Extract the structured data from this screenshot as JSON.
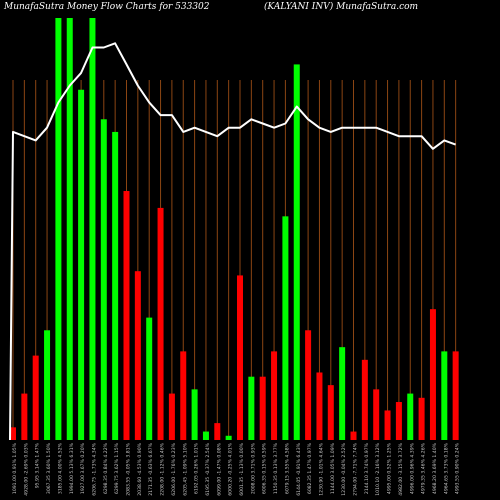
{
  "header": {
    "title": "MunafaSutra Money Flow  Charts for 533302",
    "subtitle": "(KALYANI INV) MunafaSutra.com"
  },
  "colors": {
    "background": "#000000",
    "grid": "#8B4513",
    "up": "#00FF00",
    "down": "#FF0000",
    "line": "#FFFFFF",
    "label": "#C8C8C8"
  },
  "chart_data": {
    "type": "bar",
    "grid": true,
    "series_line_name": "",
    "bars": [
      {
        "label": "1091.00 0.91% 1.05%",
        "value": 3,
        "color": "down"
      },
      {
        "label": "4928.00 -2.69% 0.03%",
        "value": 11,
        "color": "down"
      },
      {
        "label": "95.95 3.14% 1.47%",
        "value": 20,
        "color": "down"
      },
      {
        "label": "3067.35 3.60% 1.50%",
        "value": 26,
        "color": "up"
      },
      {
        "label": "3185.00 4.00% 4.52%",
        "value": 100,
        "color": "up"
      },
      {
        "label": "1994.00 5.13% 6.31%",
        "value": 100,
        "color": "up"
      },
      {
        "label": "1927.00 3.67% 0.20%",
        "value": 83,
        "color": "up"
      },
      {
        "label": "6206.75 -1.73% 4.34%",
        "value": 100,
        "color": "up"
      },
      {
        "label": "6298.35 0.84% 4.22%",
        "value": 76,
        "color": "up"
      },
      {
        "label": "6299.75 3.62% 1.15%",
        "value": 73,
        "color": "up"
      },
      {
        "label": "2083.55 -0.05% 3.81%",
        "value": 59,
        "color": "down"
      },
      {
        "label": "2038.60 -4.53% 0.90%",
        "value": 40,
        "color": "down"
      },
      {
        "label": "2171.35 -0.63% 6.67%",
        "value": 29,
        "color": "up"
      },
      {
        "label": "2208.00 -1.12% 0.46%",
        "value": 55,
        "color": "down"
      },
      {
        "label": "6206.00 -1.76% 0.23%",
        "value": 11,
        "color": "down"
      },
      {
        "label": "6205.45 -1.09% 5.10%",
        "value": 21,
        "color": "down"
      },
      {
        "label": "6192.05 0.26% 1.01%",
        "value": 12,
        "color": "up"
      },
      {
        "label": "6195.35 -0.37% 2.54%",
        "value": 2,
        "color": "up"
      },
      {
        "label": "6099.00 -1.47% 0.08%",
        "value": 4,
        "color": "down"
      },
      {
        "label": "6000.20 -0.25% 4.01%",
        "value": 1,
        "color": "up"
      },
      {
        "label": "6001.35 -1.13% 0.00%",
        "value": 39,
        "color": "down"
      },
      {
        "label": "2008.00 3.71% 0.93%",
        "value": 15,
        "color": "up"
      },
      {
        "label": "6006.35 0.15% 0.59%",
        "value": 15,
        "color": "down"
      },
      {
        "label": "1150.35 0.13% 3.77%",
        "value": 21,
        "color": "down"
      },
      {
        "label": "6079.15 3.55% 4.58%",
        "value": 53,
        "color": "up"
      },
      {
        "label": "6144.05 -0.91% 6.43%",
        "value": 89,
        "color": "up"
      },
      {
        "label": "6082.35 1.47% 0.97%",
        "value": 26,
        "color": "down"
      },
      {
        "label": "1230.90 -1.01% 4.64%",
        "value": 16,
        "color": "down"
      },
      {
        "label": "1144.00 3.05% 1.09%",
        "value": 13,
        "color": "down"
      },
      {
        "label": "1230.00 -0.04% 2.52%",
        "value": 22,
        "color": "up"
      },
      {
        "label": "2794.00 -7.71% 7.74%",
        "value": 2,
        "color": "down"
      },
      {
        "label": "2144.10 3.74% 0.97%",
        "value": 19,
        "color": "down"
      },
      {
        "label": "1010.10 -2.16% 3.12%",
        "value": 12,
        "color": "down"
      },
      {
        "label": "4995.00 0.52% 1.25%",
        "value": 7,
        "color": "down"
      },
      {
        "label": "4982.00 -3.15% 3.72%",
        "value": 9,
        "color": "down"
      },
      {
        "label": "4996.00 0.96% 4.39%",
        "value": 11,
        "color": "up"
      },
      {
        "label": "4979.35 3.46% 4.26%",
        "value": 10,
        "color": "down"
      },
      {
        "label": "4968.20 3.69% 1.40%",
        "value": 31,
        "color": "down"
      },
      {
        "label": "4964.65 3.73% 0.18%",
        "value": 21,
        "color": "up"
      },
      {
        "label": "4993.55 0.90% 0.24%",
        "value": 21,
        "color": "down"
      }
    ],
    "line_values": [
      73,
      72,
      71,
      74,
      80,
      84,
      87,
      93,
      93,
      94,
      89,
      84,
      80,
      77,
      77,
      73,
      74,
      73,
      72,
      74,
      74,
      76,
      75,
      74,
      75,
      79,
      76,
      74,
      73,
      74,
      74,
      74,
      74,
      73,
      72,
      72,
      72,
      69,
      71,
      70
    ],
    "ylim": [
      0,
      100
    ]
  }
}
